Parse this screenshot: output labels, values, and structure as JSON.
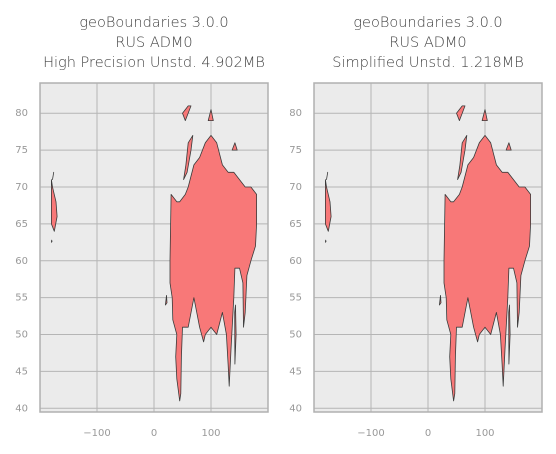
{
  "chart_data": [
    {
      "type": "map",
      "title": [
        "geoBoundaries 3.0.0",
        "RUS ADM0",
        "High Precision Unstd. 4.902MB"
      ],
      "xlim": [
        -200,
        200
      ],
      "ylim": [
        39.5,
        84.1
      ],
      "xticks": [
        {
          "value": -100,
          "label": "−100"
        },
        0,
        100
      ],
      "yticks": [
        40,
        45,
        50,
        55,
        60,
        65,
        70,
        75,
        80
      ],
      "grid": true,
      "color": "#f87878"
    },
    {
      "type": "map",
      "title": [
        "geoBoundaries 3.0.0",
        "RUS ADM0",
        "Simplified Unstd. 1.218MB"
      ],
      "xlim": [
        -200,
        200
      ],
      "ylim": [
        39.5,
        84.1
      ],
      "xticks": [
        {
          "value": -100,
          "label": "−100"
        },
        0,
        100
      ],
      "yticks": [
        40,
        45,
        50,
        55,
        60,
        65,
        70,
        75,
        80
      ],
      "grid": true,
      "color": "#f87878"
    }
  ]
}
